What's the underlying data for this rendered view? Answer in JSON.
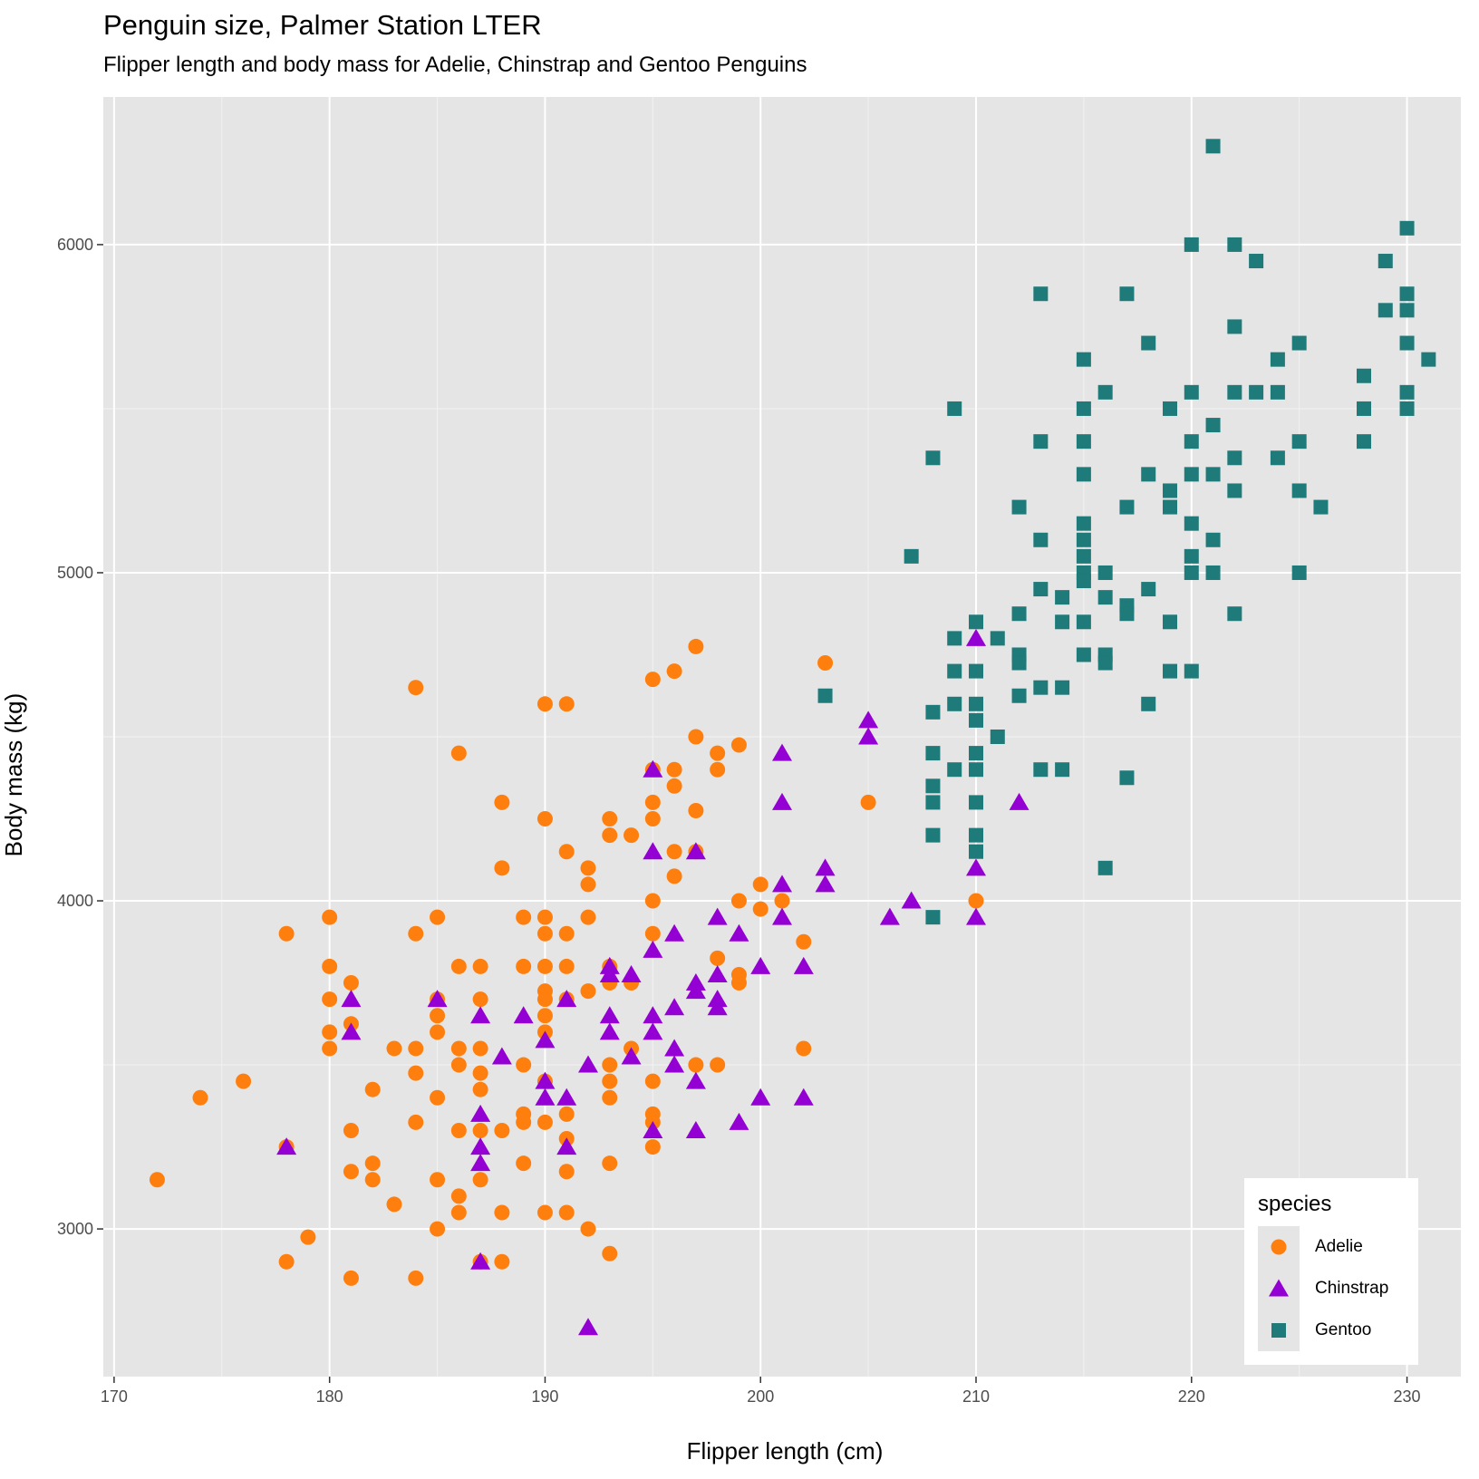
{
  "chart_data": {
    "type": "scatter",
    "title": "Penguin size, Palmer Station LTER",
    "subtitle": "Flipper length and body mass for Adelie, Chinstrap and Gentoo Penguins",
    "xlabel": "Flipper length (cm)",
    "ylabel": "Body mass (kg)",
    "xlim": [
      169.5,
      232.5
    ],
    "ylim": [
      2550,
      6450
    ],
    "x_ticks": [
      170,
      180,
      190,
      200,
      210,
      220,
      230
    ],
    "y_ticks": [
      3000,
      4000,
      5000,
      6000
    ],
    "x_minor_ticks": [
      175,
      185,
      195,
      205,
      215,
      225
    ],
    "y_minor_ticks": [
      3500,
      4500,
      5500
    ],
    "grid": true,
    "legend": {
      "title": "species",
      "position": "bottom-right"
    },
    "series": [
      {
        "name": "Adelie",
        "shape": "circle",
        "color": "#FF7F0E",
        "points": [
          [
            172,
            3150
          ],
          [
            174,
            3400
          ],
          [
            176,
            3450
          ],
          [
            178,
            3900
          ],
          [
            178,
            3250
          ],
          [
            178,
            2900
          ],
          [
            179,
            2975
          ],
          [
            180,
            3950
          ],
          [
            180,
            3800
          ],
          [
            180,
            3700
          ],
          [
            180,
            3600
          ],
          [
            180,
            3550
          ],
          [
            181,
            3750
          ],
          [
            181,
            3625
          ],
          [
            181,
            3300
          ],
          [
            181,
            3175
          ],
          [
            181,
            2850
          ],
          [
            182,
            3425
          ],
          [
            182,
            3200
          ],
          [
            182,
            3150
          ],
          [
            183,
            3550
          ],
          [
            183,
            3075
          ],
          [
            184,
            4650
          ],
          [
            184,
            3900
          ],
          [
            184,
            3550
          ],
          [
            184,
            3475
          ],
          [
            184,
            3325
          ],
          [
            184,
            2850
          ],
          [
            185,
            3950
          ],
          [
            185,
            3700
          ],
          [
            185,
            3650
          ],
          [
            185,
            3600
          ],
          [
            185,
            3400
          ],
          [
            185,
            3150
          ],
          [
            185,
            3000
          ],
          [
            186,
            4450
          ],
          [
            186,
            3800
          ],
          [
            186,
            3550
          ],
          [
            186,
            3500
          ],
          [
            186,
            3300
          ],
          [
            186,
            3100
          ],
          [
            186,
            3050
          ],
          [
            187,
            3800
          ],
          [
            187,
            3700
          ],
          [
            187,
            3550
          ],
          [
            187,
            3475
          ],
          [
            187,
            3425
          ],
          [
            187,
            3300
          ],
          [
            187,
            3150
          ],
          [
            187,
            2900
          ],
          [
            188,
            4300
          ],
          [
            188,
            4100
          ],
          [
            188,
            3300
          ],
          [
            188,
            3050
          ],
          [
            188,
            2900
          ],
          [
            189,
            3950
          ],
          [
            189,
            3800
          ],
          [
            189,
            3500
          ],
          [
            189,
            3350
          ],
          [
            189,
            3325
          ],
          [
            189,
            3200
          ],
          [
            190,
            4600
          ],
          [
            190,
            4250
          ],
          [
            190,
            3950
          ],
          [
            190,
            3900
          ],
          [
            190,
            3800
          ],
          [
            190,
            3725
          ],
          [
            190,
            3700
          ],
          [
            190,
            3650
          ],
          [
            190,
            3600
          ],
          [
            190,
            3450
          ],
          [
            190,
            3325
          ],
          [
            190,
            3050
          ],
          [
            191,
            4600
          ],
          [
            191,
            4150
          ],
          [
            191,
            3900
          ],
          [
            191,
            3800
          ],
          [
            191,
            3700
          ],
          [
            191,
            3350
          ],
          [
            191,
            3275
          ],
          [
            191,
            3175
          ],
          [
            191,
            3050
          ],
          [
            192,
            4100
          ],
          [
            192,
            4050
          ],
          [
            192,
            3950
          ],
          [
            192,
            3725
          ],
          [
            192,
            3000
          ],
          [
            193,
            4250
          ],
          [
            193,
            4200
          ],
          [
            193,
            3800
          ],
          [
            193,
            3750
          ],
          [
            193,
            3500
          ],
          [
            193,
            3450
          ],
          [
            193,
            3400
          ],
          [
            193,
            3200
          ],
          [
            193,
            2925
          ],
          [
            194,
            4200
          ],
          [
            194,
            3750
          ],
          [
            194,
            3550
          ],
          [
            195,
            4675
          ],
          [
            195,
            4400
          ],
          [
            195,
            4300
          ],
          [
            195,
            4250
          ],
          [
            195,
            4000
          ],
          [
            195,
            3900
          ],
          [
            195,
            3450
          ],
          [
            195,
            3350
          ],
          [
            195,
            3325
          ],
          [
            195,
            3250
          ],
          [
            196,
            4700
          ],
          [
            196,
            4400
          ],
          [
            196,
            4350
          ],
          [
            196,
            4150
          ],
          [
            196,
            4075
          ],
          [
            197,
            4775
          ],
          [
            197,
            4500
          ],
          [
            197,
            4275
          ],
          [
            197,
            4150
          ],
          [
            197,
            3500
          ],
          [
            198,
            4450
          ],
          [
            198,
            4400
          ],
          [
            198,
            3825
          ],
          [
            198,
            3500
          ],
          [
            199,
            4475
          ],
          [
            199,
            4000
          ],
          [
            199,
            3775
          ],
          [
            199,
            3750
          ],
          [
            200,
            4050
          ],
          [
            200,
            3975
          ],
          [
            201,
            4000
          ],
          [
            202,
            3875
          ],
          [
            202,
            3550
          ],
          [
            203,
            4725
          ],
          [
            205,
            4300
          ],
          [
            210,
            4000
          ]
        ]
      },
      {
        "name": "Chinstrap",
        "shape": "triangle",
        "color": "#9400D3",
        "points": [
          [
            178,
            3250
          ],
          [
            181,
            3700
          ],
          [
            181,
            3600
          ],
          [
            185,
            3700
          ],
          [
            187,
            3650
          ],
          [
            187,
            3350
          ],
          [
            187,
            3250
          ],
          [
            187,
            3200
          ],
          [
            187,
            2900
          ],
          [
            188,
            3525
          ],
          [
            189,
            3650
          ],
          [
            190,
            3575
          ],
          [
            190,
            3450
          ],
          [
            190,
            3400
          ],
          [
            191,
            3700
          ],
          [
            191,
            3400
          ],
          [
            191,
            3250
          ],
          [
            192,
            3500
          ],
          [
            192,
            2700
          ],
          [
            193,
            3800
          ],
          [
            193,
            3775
          ],
          [
            193,
            3650
          ],
          [
            193,
            3600
          ],
          [
            194,
            3775
          ],
          [
            194,
            3525
          ],
          [
            195,
            4400
          ],
          [
            195,
            4150
          ],
          [
            195,
            3850
          ],
          [
            195,
            3650
          ],
          [
            195,
            3600
          ],
          [
            195,
            3300
          ],
          [
            196,
            3900
          ],
          [
            196,
            3675
          ],
          [
            196,
            3550
          ],
          [
            196,
            3500
          ],
          [
            197,
            4150
          ],
          [
            197,
            3750
          ],
          [
            197,
            3725
          ],
          [
            197,
            3450
          ],
          [
            197,
            3300
          ],
          [
            198,
            3950
          ],
          [
            198,
            3775
          ],
          [
            198,
            3700
          ],
          [
            198,
            3675
          ],
          [
            199,
            3900
          ],
          [
            199,
            3325
          ],
          [
            200,
            3800
          ],
          [
            200,
            3400
          ],
          [
            201,
            4450
          ],
          [
            201,
            4300
          ],
          [
            201,
            4050
          ],
          [
            201,
            3950
          ],
          [
            202,
            3800
          ],
          [
            202,
            3400
          ],
          [
            203,
            4100
          ],
          [
            203,
            4050
          ],
          [
            205,
            4550
          ],
          [
            205,
            4500
          ],
          [
            206,
            3950
          ],
          [
            207,
            4000
          ],
          [
            210,
            4800
          ],
          [
            210,
            4100
          ],
          [
            210,
            3950
          ],
          [
            212,
            4300
          ]
        ]
      },
      {
        "name": "Gentoo",
        "shape": "square",
        "color": "#1F7A7A",
        "points": [
          [
            203,
            4625
          ],
          [
            207,
            5050
          ],
          [
            208,
            5350
          ],
          [
            208,
            4575
          ],
          [
            208,
            4450
          ],
          [
            208,
            4350
          ],
          [
            208,
            4300
          ],
          [
            208,
            4200
          ],
          [
            208,
            3950
          ],
          [
            209,
            5500
          ],
          [
            209,
            4800
          ],
          [
            209,
            4700
          ],
          [
            209,
            4600
          ],
          [
            209,
            4400
          ],
          [
            210,
            4850
          ],
          [
            210,
            4700
          ],
          [
            210,
            4600
          ],
          [
            210,
            4550
          ],
          [
            210,
            4450
          ],
          [
            210,
            4400
          ],
          [
            210,
            4300
          ],
          [
            210,
            4200
          ],
          [
            210,
            4150
          ],
          [
            211,
            4800
          ],
          [
            211,
            4500
          ],
          [
            212,
            5200
          ],
          [
            212,
            4875
          ],
          [
            212,
            4750
          ],
          [
            212,
            4725
          ],
          [
            212,
            4625
          ],
          [
            213,
            5850
          ],
          [
            213,
            5400
          ],
          [
            213,
            5100
          ],
          [
            213,
            4950
          ],
          [
            213,
            4650
          ],
          [
            213,
            4400
          ],
          [
            214,
            4925
          ],
          [
            214,
            4850
          ],
          [
            214,
            4650
          ],
          [
            214,
            4400
          ],
          [
            215,
            5650
          ],
          [
            215,
            5500
          ],
          [
            215,
            5400
          ],
          [
            215,
            5300
          ],
          [
            215,
            5150
          ],
          [
            215,
            5100
          ],
          [
            215,
            5050
          ],
          [
            215,
            5000
          ],
          [
            215,
            4975
          ],
          [
            215,
            4850
          ],
          [
            215,
            4750
          ],
          [
            216,
            5550
          ],
          [
            216,
            5000
          ],
          [
            216,
            4925
          ],
          [
            216,
            4750
          ],
          [
            216,
            4725
          ],
          [
            216,
            4100
          ],
          [
            217,
            5850
          ],
          [
            217,
            5200
          ],
          [
            217,
            4900
          ],
          [
            217,
            4875
          ],
          [
            217,
            4375
          ],
          [
            218,
            5700
          ],
          [
            218,
            5300
          ],
          [
            218,
            4950
          ],
          [
            218,
            4600
          ],
          [
            219,
            5500
          ],
          [
            219,
            5250
          ],
          [
            219,
            5200
          ],
          [
            219,
            4850
          ],
          [
            219,
            4700
          ],
          [
            220,
            6000
          ],
          [
            220,
            5550
          ],
          [
            220,
            5400
          ],
          [
            220,
            5300
          ],
          [
            220,
            5150
          ],
          [
            220,
            5050
          ],
          [
            220,
            5000
          ],
          [
            220,
            4700
          ],
          [
            221,
            6300
          ],
          [
            221,
            5450
          ],
          [
            221,
            5300
          ],
          [
            221,
            5100
          ],
          [
            221,
            5000
          ],
          [
            222,
            6000
          ],
          [
            222,
            5750
          ],
          [
            222,
            5550
          ],
          [
            222,
            5350
          ],
          [
            222,
            5250
          ],
          [
            222,
            4875
          ],
          [
            223,
            5950
          ],
          [
            223,
            5550
          ],
          [
            224,
            5650
          ],
          [
            224,
            5550
          ],
          [
            224,
            5350
          ],
          [
            225,
            5700
          ],
          [
            225,
            5400
          ],
          [
            225,
            5250
          ],
          [
            225,
            5000
          ],
          [
            226,
            5200
          ],
          [
            228,
            5600
          ],
          [
            228,
            5500
          ],
          [
            228,
            5400
          ],
          [
            229,
            5950
          ],
          [
            229,
            5800
          ],
          [
            230,
            6050
          ],
          [
            230,
            5850
          ],
          [
            230,
            5800
          ],
          [
            230,
            5700
          ],
          [
            230,
            5550
          ],
          [
            230,
            5500
          ],
          [
            231,
            5650
          ]
        ]
      }
    ]
  }
}
